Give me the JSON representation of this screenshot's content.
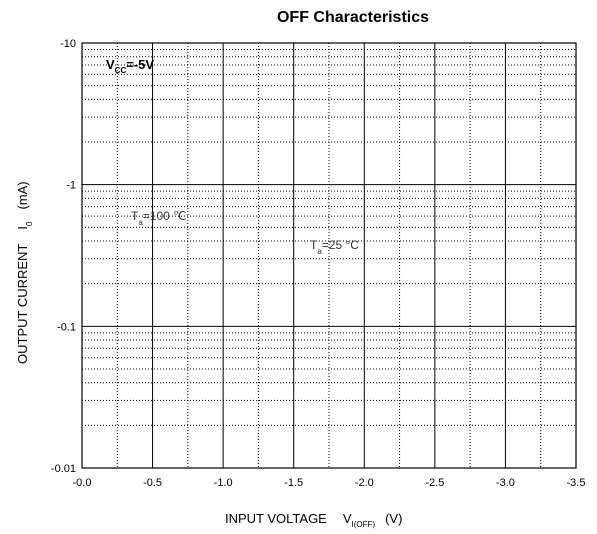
{
  "chart_data": {
    "type": "line",
    "title": "OFF Characteristics",
    "xlabel": {
      "text": "INPUT VOLTAGE",
      "symbol": "V",
      "symbol_sub": "I(OFF)",
      "unit": "(V)"
    },
    "ylabel": {
      "text": "OUTPUT CURRENT",
      "symbol": "I",
      "symbol_sub": "0",
      "unit": "(mA)"
    },
    "x_ticks": [
      "-0.0",
      "-0.5",
      "-1.0",
      "-1.5",
      "-2.0",
      "-2.5",
      "-3.0",
      "-3.5"
    ],
    "y_ticks": [
      "-10",
      "-1",
      "-0.1",
      "-0.01"
    ],
    "xlim": [
      0,
      -3.5
    ],
    "ylim": [
      -0.01,
      -10
    ],
    "y_scale": "log",
    "grid": true,
    "series": [],
    "annotations": {
      "condition": {
        "symbol": "V",
        "sub": "CC",
        "value": "=-5V"
      },
      "curve_100": {
        "symbol": "T",
        "sub": "a",
        "value": "=100 ℃"
      },
      "curve_25": {
        "symbol": "T",
        "sub": "a",
        "value": "=25 °C"
      }
    }
  }
}
